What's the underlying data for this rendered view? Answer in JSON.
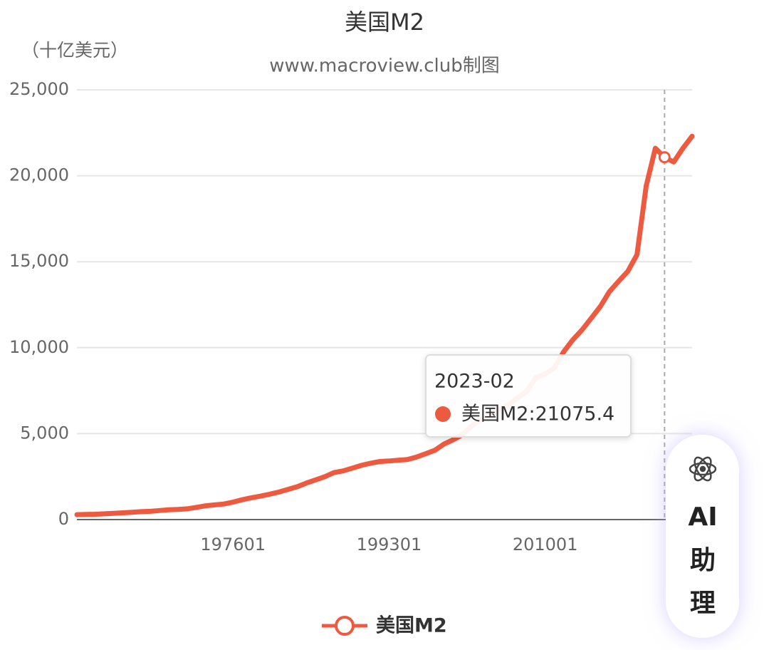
{
  "chart_data": {
    "type": "line",
    "title": "美国M2",
    "subtitle": "www.macroview.club制图",
    "y_unit": "（十亿美元）",
    "categories": [
      null,
      null,
      null,
      null,
      null,
      null,
      null,
      null,
      null,
      null,
      null,
      null,
      null,
      null,
      null,
      null,
      null,
      "197601",
      null,
      null,
      null,
      null,
      null,
      null,
      null,
      null,
      null,
      null,
      null,
      null,
      null,
      null,
      null,
      null,
      "199301",
      null,
      null,
      null,
      null,
      null,
      null,
      null,
      null,
      null,
      null,
      null,
      null,
      null,
      null,
      null,
      null,
      "201001",
      null,
      null,
      null,
      null,
      null,
      null,
      null,
      null,
      null,
      null,
      null,
      null,
      null,
      null,
      null,
      null
    ],
    "series": [
      {
        "name": "美国M2",
        "color": "#ee5a40",
        "values": [
          286,
          298,
          312,
          335,
          362,
          393,
          424,
          459,
          480,
          525,
          567,
          587,
          626,
          710,
          802,
          855,
          902,
          1016,
          1152,
          1270,
          1366,
          1474,
          1600,
          1757,
          1910,
          2127,
          2311,
          2497,
          2732,
          2831,
          2993,
          3157,
          3278,
          3380,
          3409,
          3455,
          3493,
          3641,
          3832,
          4032,
          4400,
          4648,
          4944,
          5450,
          5790,
          6070,
          6400,
          6680,
          7080,
          7470,
          8260,
          8480,
          8820,
          9750,
          10450,
          11030,
          11700,
          12390,
          13260,
          13860,
          14440,
          15410,
          19400,
          21600,
          21075.4,
          20800,
          21600,
          22300
        ]
      }
    ],
    "ylim": [
      0,
      25000
    ],
    "yticks": [
      0,
      {
        "value": 5000,
        "label": "5,000"
      },
      {
        "value": 10000,
        "label": "10,000"
      },
      {
        "value": 15000,
        "label": "15,000"
      },
      {
        "value": 20000,
        "label": "20,000"
      },
      {
        "value": 25000,
        "label": "25,000"
      }
    ],
    "grid": true,
    "tooltip": {
      "date": "2023-02",
      "text": "美国M2:21075.4",
      "index": 64
    }
  },
  "assistant": {
    "line1": "AI",
    "line2": "助",
    "line3": "理"
  }
}
